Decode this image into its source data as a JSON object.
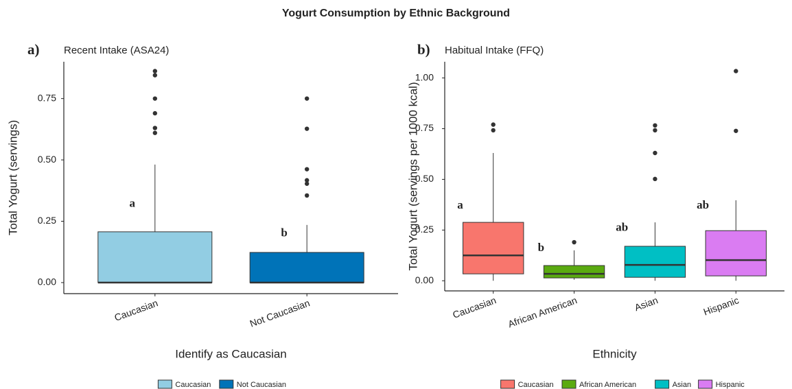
{
  "title": "Yogurt Consumption by Ethnic Background",
  "chart_data": [
    {
      "type": "box",
      "panel_label": "a)",
      "title": "Recent Intake (ASA24)",
      "xlabel": "Identify as Caucasian",
      "ylabel": "Total Yogurt (servings)",
      "categories": [
        "Caucasian",
        "Not Caucasian"
      ],
      "colors": [
        "#92cde3",
        "#0073b8"
      ],
      "boxes": [
        {
          "min": 0,
          "q1": 0,
          "median": 0,
          "q3": 0.207,
          "max": 0.481,
          "outliers": [
            0.862,
            0.845,
            0.75,
            0.69,
            0.63,
            0.61
          ]
        },
        {
          "min": 0,
          "q1": 0,
          "median": 0,
          "q3": 0.123,
          "max": 0.235,
          "outliers": [
            0.75,
            0.627,
            0.462,
            0.417,
            0.403,
            0.355
          ]
        }
      ],
      "annotations": [
        "a",
        "b"
      ],
      "annotation_y": [
        0.32,
        0.2
      ],
      "ylim": [
        -0.045,
        0.9
      ],
      "yticks": [
        {
          "value": 0,
          "label": "0.00"
        },
        {
          "value": 0.25,
          "label": "0.25"
        },
        {
          "value": 0.5,
          "label": "0.50"
        },
        {
          "value": 0.75,
          "label": "0.75"
        }
      ],
      "legend": "bottom"
    },
    {
      "type": "box",
      "panel_label": "b)",
      "title": "Habitual Intake (FFQ)",
      "xlabel": "Ethnicity",
      "ylabel": "Total Yogurt (servings per 1000 kcal)",
      "categories": [
        "Caucasian",
        "African American",
        "Asian",
        "Hispanic"
      ],
      "colors": [
        "#f8766d",
        "#5aaa10",
        "#00bfc4",
        "#da7cf2"
      ],
      "boxes": [
        {
          "min": 0,
          "q1": 0.034,
          "median": 0.125,
          "q3": 0.288,
          "max": 0.63,
          "outliers": [
            0.77,
            0.742
          ]
        },
        {
          "min": 0.005,
          "q1": 0.014,
          "median": 0.034,
          "q3": 0.075,
          "max": 0.15,
          "outliers": [
            0.19
          ]
        },
        {
          "min": 0,
          "q1": 0.017,
          "median": 0.078,
          "q3": 0.17,
          "max": 0.288,
          "outliers": [
            0.766,
            0.742,
            0.63,
            0.502
          ]
        },
        {
          "min": 0,
          "q1": 0.024,
          "median": 0.102,
          "q3": 0.247,
          "max": 0.397,
          "outliers": [
            1.034,
            0.739
          ]
        }
      ],
      "annotations": [
        "a",
        "b",
        "ab",
        "ab"
      ],
      "annotation_y": [
        0.37,
        0.16,
        0.26,
        0.37
      ],
      "ylim": [
        -0.05,
        1.08
      ],
      "yticks": [
        {
          "value": 0,
          "label": "0.00"
        },
        {
          "value": 0.25,
          "label": "0.25"
        },
        {
          "value": 0.5,
          "label": "0.50"
        },
        {
          "value": 0.75,
          "label": "0.75"
        },
        {
          "value": 1,
          "label": "1.00"
        }
      ],
      "legend": "bottom"
    }
  ]
}
